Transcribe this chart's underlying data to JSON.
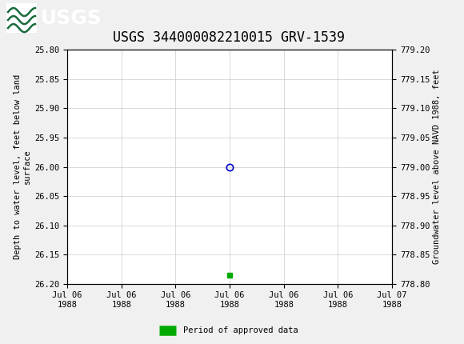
{
  "title": "USGS 344000082210015 GRV-1539",
  "header_bg_color": "#1a6b3c",
  "left_ylabel_line1": "Depth to water level, feet below land",
  "left_ylabel_line2": "surface",
  "right_ylabel": "Groundwater level above NAVD 1988, feet",
  "ylim_left": [
    25.8,
    26.2
  ],
  "ylim_right": [
    778.8,
    779.2
  ],
  "y_ticks_left": [
    25.8,
    25.85,
    25.9,
    25.95,
    26.0,
    26.05,
    26.1,
    26.15,
    26.2
  ],
  "y_ticks_right": [
    778.8,
    778.85,
    778.9,
    778.95,
    779.0,
    779.05,
    779.1,
    779.15,
    779.2
  ],
  "x_start_hours": 0.0,
  "x_end_hours": 24.0,
  "data_point_x_hours": 12.0,
  "data_point_y": 26.0,
  "data_point_color": "#0000cc",
  "data_point_marker": "o",
  "data_point_markersize": 6,
  "green_bar_x_hours": 12.0,
  "green_bar_y": 26.185,
  "green_bar_color": "#00aa00",
  "green_bar_marker": "s",
  "green_bar_markersize": 4,
  "legend_label": "Period of approved data",
  "legend_color": "#00aa00",
  "grid_color": "#cccccc",
  "bg_color": "#f0f0f0",
  "plot_bg_color": "#ffffff",
  "font_color": "#000000",
  "tick_font_family": "monospace",
  "title_fontsize": 12,
  "tick_fontsize": 7.5,
  "label_fontsize": 7.5,
  "x_tick_labels": [
    "Jul 06\n1988",
    "Jul 06\n1988",
    "Jul 06\n1988",
    "Jul 06\n1988",
    "Jul 06\n1988",
    "Jul 06\n1988",
    "Jul 07\n1988"
  ],
  "x_tick_positions_hours": [
    0,
    4,
    8,
    12,
    16,
    20,
    24
  ]
}
